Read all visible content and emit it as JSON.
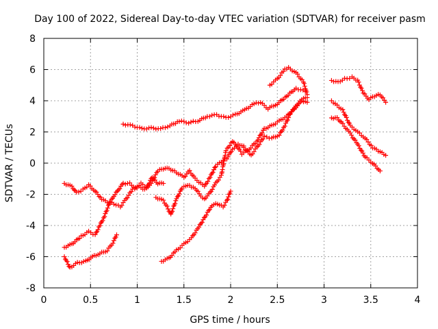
{
  "chart_data": {
    "type": "scatter",
    "title": "Day 100 of 2022, Sidereal Day-to-day VTEC variation (SDTVAR) for receiver pasm",
    "xlabel": "GPS time / hours",
    "ylabel": "SDTVAR / TECUs",
    "xlim": [
      0,
      4
    ],
    "ylim": [
      -8,
      8
    ],
    "xticks": [
      "0",
      "0.5",
      "1",
      "1.5",
      "2",
      "2.5",
      "3",
      "3.5",
      "4"
    ],
    "yticks": [
      "-8",
      "-6",
      "-4",
      "-2",
      "0",
      "2",
      "4",
      "6",
      "8"
    ],
    "grid": true,
    "marker": "+",
    "color": "#ff0000",
    "series": [
      {
        "name": "track-1",
        "points": [
          [
            0.85,
            2.5
          ],
          [
            0.95,
            2.4
          ],
          [
            1.05,
            2.2
          ],
          [
            1.15,
            2.25
          ],
          [
            1.25,
            2.2
          ],
          [
            1.35,
            2.4
          ],
          [
            1.45,
            2.7
          ],
          [
            1.55,
            2.6
          ],
          [
            1.65,
            2.7
          ],
          [
            1.75,
            3.0
          ],
          [
            1.85,
            3.1
          ],
          [
            1.95,
            2.9
          ],
          [
            2.05,
            3.1
          ],
          [
            2.15,
            3.4
          ],
          [
            2.25,
            3.8
          ],
          [
            2.32,
            3.9
          ],
          [
            2.4,
            3.5
          ],
          [
            2.5,
            3.8
          ],
          [
            2.6,
            4.3
          ],
          [
            2.7,
            4.8
          ],
          [
            2.8,
            4.6
          ]
        ]
      },
      {
        "name": "track-2",
        "points": [
          [
            2.42,
            5.0
          ],
          [
            2.5,
            5.4
          ],
          [
            2.58,
            6.0
          ],
          [
            2.62,
            6.1
          ],
          [
            2.7,
            5.8
          ],
          [
            2.78,
            5.2
          ],
          [
            2.82,
            4.4
          ]
        ]
      },
      {
        "name": "track-3",
        "points": [
          [
            0.22,
            -1.3
          ],
          [
            0.3,
            -1.5
          ],
          [
            0.35,
            -1.9
          ],
          [
            0.42,
            -1.7
          ],
          [
            0.48,
            -1.4
          ],
          [
            0.55,
            -1.8
          ],
          [
            0.62,
            -2.3
          ],
          [
            0.68,
            -2.5
          ],
          [
            0.75,
            -2.6
          ],
          [
            0.82,
            -2.8
          ],
          [
            0.88,
            -2.3
          ],
          [
            0.95,
            -1.7
          ],
          [
            1.02,
            -1.5
          ],
          [
            1.08,
            -1.7
          ],
          [
            1.15,
            -1.3
          ],
          [
            1.22,
            -0.5
          ],
          [
            1.3,
            -0.3
          ],
          [
            1.36,
            -0.4
          ],
          [
            1.42,
            -0.6
          ],
          [
            1.5,
            -0.9
          ],
          [
            1.56,
            -0.5
          ],
          [
            1.62,
            -1.0
          ],
          [
            1.68,
            -1.3
          ],
          [
            1.72,
            -1.5
          ],
          [
            1.78,
            -0.9
          ],
          [
            1.84,
            -0.2
          ],
          [
            1.9,
            0.1
          ],
          [
            1.96,
            0.3
          ],
          [
            2.02,
            0.9
          ],
          [
            2.08,
            1.2
          ],
          [
            2.14,
            1.1
          ]
        ]
      },
      {
        "name": "track-4",
        "points": [
          [
            0.22,
            -5.4
          ],
          [
            0.3,
            -5.2
          ],
          [
            0.4,
            -4.7
          ],
          [
            0.48,
            -4.4
          ],
          [
            0.55,
            -4.6
          ],
          [
            0.6,
            -4.0
          ],
          [
            0.65,
            -3.4
          ],
          [
            0.7,
            -2.6
          ],
          [
            0.75,
            -2.1
          ],
          [
            0.8,
            -1.7
          ],
          [
            0.85,
            -1.3
          ],
          [
            0.92,
            -1.3
          ],
          [
            0.98,
            -1.6
          ],
          [
            1.04,
            -1.3
          ],
          [
            1.1,
            -1.6
          ],
          [
            1.16,
            -0.9
          ],
          [
            1.22,
            -1.3
          ],
          [
            1.28,
            -1.3
          ]
        ]
      },
      {
        "name": "track-5",
        "points": [
          [
            0.22,
            -6.0
          ],
          [
            0.28,
            -6.7
          ],
          [
            0.36,
            -6.4
          ],
          [
            0.45,
            -6.3
          ],
          [
            0.52,
            -6.0
          ],
          [
            0.6,
            -5.8
          ],
          [
            0.68,
            -5.6
          ],
          [
            0.74,
            -5.1
          ],
          [
            0.78,
            -4.6
          ]
        ]
      },
      {
        "name": "track-6",
        "points": [
          [
            1.2,
            -2.2
          ],
          [
            1.28,
            -2.4
          ],
          [
            1.32,
            -2.8
          ],
          [
            1.36,
            -3.3
          ],
          [
            1.42,
            -2.3
          ],
          [
            1.48,
            -1.6
          ],
          [
            1.54,
            -1.4
          ],
          [
            1.58,
            -1.5
          ],
          [
            1.62,
            -1.6
          ],
          [
            1.68,
            -2.1
          ],
          [
            1.72,
            -2.3
          ],
          [
            1.78,
            -1.9
          ],
          [
            1.84,
            -1.3
          ],
          [
            1.9,
            -0.8
          ],
          [
            1.95,
            0.8
          ],
          [
            2.02,
            1.4
          ],
          [
            2.08,
            1.0
          ],
          [
            2.12,
            0.6
          ],
          [
            2.2,
            0.9
          ],
          [
            2.28,
            1.4
          ],
          [
            2.36,
            2.2
          ],
          [
            2.44,
            2.4
          ],
          [
            2.52,
            2.7
          ],
          [
            2.6,
            3.0
          ],
          [
            2.68,
            3.5
          ],
          [
            2.76,
            4.1
          ],
          [
            2.82,
            4.2
          ]
        ]
      },
      {
        "name": "track-7",
        "points": [
          [
            1.26,
            -6.3
          ],
          [
            1.34,
            -6.1
          ],
          [
            1.42,
            -5.6
          ],
          [
            1.5,
            -5.2
          ],
          [
            1.58,
            -4.8
          ],
          [
            1.66,
            -4.1
          ],
          [
            1.74,
            -3.3
          ],
          [
            1.8,
            -2.7
          ],
          [
            1.86,
            -2.6
          ],
          [
            1.92,
            -2.8
          ],
          [
            1.96,
            -2.4
          ],
          [
            2.0,
            -1.8
          ]
        ]
      },
      {
        "name": "track-8",
        "points": [
          [
            2.14,
            1.0
          ],
          [
            2.22,
            0.5
          ],
          [
            2.28,
            1.0
          ],
          [
            2.36,
            1.7
          ],
          [
            2.44,
            1.6
          ],
          [
            2.52,
            1.8
          ],
          [
            2.58,
            2.4
          ],
          [
            2.64,
            3.2
          ],
          [
            2.7,
            3.6
          ],
          [
            2.76,
            4.0
          ],
          [
            2.82,
            3.9
          ]
        ]
      },
      {
        "name": "track-9",
        "points": [
          [
            3.08,
            5.3
          ],
          [
            3.15,
            5.2
          ],
          [
            3.22,
            5.4
          ],
          [
            3.3,
            5.5
          ],
          [
            3.36,
            5.3
          ],
          [
            3.42,
            4.5
          ],
          [
            3.48,
            4.1
          ],
          [
            3.54,
            4.3
          ],
          [
            3.6,
            4.4
          ],
          [
            3.66,
            3.9
          ]
        ]
      },
      {
        "name": "track-10",
        "points": [
          [
            3.08,
            4.0
          ],
          [
            3.14,
            3.7
          ],
          [
            3.2,
            3.4
          ],
          [
            3.28,
            2.4
          ],
          [
            3.36,
            2.0
          ],
          [
            3.44,
            1.6
          ],
          [
            3.52,
            1.0
          ],
          [
            3.58,
            0.8
          ],
          [
            3.66,
            0.5
          ]
        ]
      },
      {
        "name": "track-11",
        "points": [
          [
            3.08,
            2.9
          ],
          [
            3.14,
            2.9
          ],
          [
            3.2,
            2.5
          ],
          [
            3.28,
            1.9
          ],
          [
            3.36,
            1.2
          ],
          [
            3.44,
            0.4
          ],
          [
            3.52,
            0.0
          ],
          [
            3.6,
            -0.5
          ]
        ]
      }
    ]
  }
}
